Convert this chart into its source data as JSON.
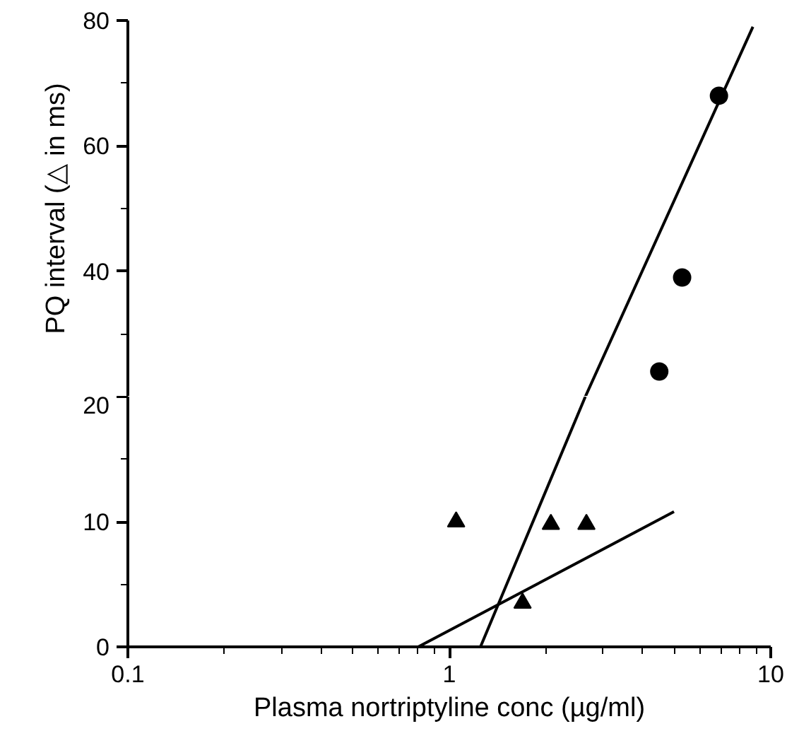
{
  "chart_data": [
    {
      "type": "scatter",
      "ylabel": "PQ interval (△ in ms)",
      "log": "x",
      "xlim": [
        0.1,
        10
      ],
      "xticks": [
        0.1,
        1,
        10
      ],
      "ylim": [
        20,
        80
      ],
      "yticks": [
        40,
        60,
        80
      ],
      "tick_labels": "y",
      "series": [
        {
          "marker": "circle",
          "color": "#000000",
          "x": [
            4.5,
            5.3,
            6.9
          ],
          "values": [
            24,
            39,
            68
          ]
        },
        {
          "type": "line",
          "color": "#000000",
          "x": [
            2.65,
            8.8
          ],
          "values": [
            20,
            79
          ]
        }
      ]
    },
    {
      "type": "scatter",
      "xlabel": "Plasma nortriptyline conc (µg/ml)",
      "log": "x",
      "xlim": [
        0.1,
        10
      ],
      "xticks": [
        0.1,
        1,
        10
      ],
      "ylim": [
        0,
        20
      ],
      "yticks": [
        0,
        10,
        20
      ],
      "series": [
        {
          "marker": "triangle",
          "color": "#000000",
          "x": [
            1.05,
            1.69,
            2.07,
            2.67
          ],
          "values": [
            10,
            3.5,
            9.8,
            9.8
          ]
        },
        {
          "type": "line",
          "color": "#000000",
          "x": [
            1.25,
            2.65
          ],
          "values": [
            0,
            20
          ]
        },
        {
          "type": "line",
          "color": "#000000",
          "x": [
            0.8,
            5.0
          ],
          "values": [
            0,
            10.8
          ]
        }
      ]
    }
  ]
}
